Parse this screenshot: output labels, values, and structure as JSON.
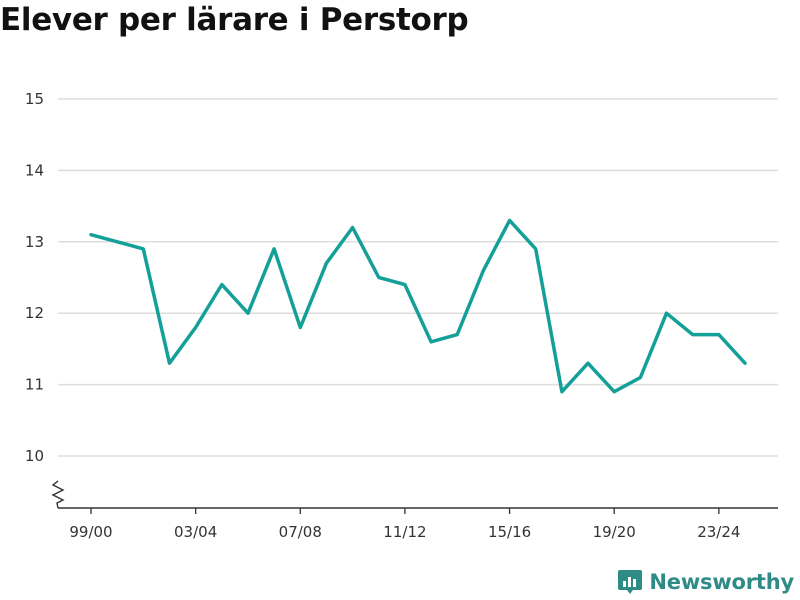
{
  "chart_data": {
    "type": "line",
    "title": "Elever per lärare i Perstorp",
    "xlabel": "",
    "ylabel": "",
    "x": [
      "99/00",
      "00/01",
      "01/02",
      "02/03",
      "03/04",
      "04/05",
      "05/06",
      "06/07",
      "07/08",
      "08/09",
      "09/10",
      "10/11",
      "11/12",
      "12/13",
      "13/14",
      "14/15",
      "15/16",
      "16/17",
      "17/18",
      "18/19",
      "19/20",
      "20/21",
      "21/22",
      "22/23",
      "23/24",
      "24/25"
    ],
    "x_tick_labels": [
      "99/00",
      "03/04",
      "07/08",
      "11/12",
      "15/16",
      "19/20",
      "23/24"
    ],
    "values": [
      13.1,
      13.0,
      12.9,
      11.3,
      11.8,
      12.4,
      12.0,
      12.9,
      11.8,
      12.7,
      13.2,
      12.5,
      12.4,
      11.6,
      11.7,
      12.6,
      13.3,
      12.9,
      10.9,
      11.3,
      10.9,
      11.1,
      12.0,
      11.7,
      11.7,
      11.3
    ],
    "y_ticks": [
      10,
      11,
      12,
      13,
      14,
      15
    ],
    "ylim": [
      10,
      15
    ],
    "grid": true,
    "line_color": "#14a098",
    "y_axis_break": true
  },
  "brand": {
    "name": "Newsworthy",
    "icon": "newsworthy-logo-icon",
    "color": "#2e8b86"
  }
}
